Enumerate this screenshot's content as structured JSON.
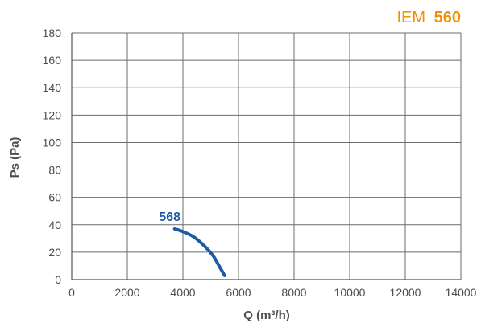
{
  "chart_data": {
    "type": "line",
    "title": {
      "prefix": "IEM",
      "model": "560"
    },
    "xlabel": "Q (m³/h)",
    "ylabel": "Ps (Pa)",
    "xlim": [
      0,
      14000
    ],
    "ylim": [
      0,
      180
    ],
    "x_ticks": [
      0,
      2000,
      4000,
      6000,
      8000,
      10000,
      12000,
      14000
    ],
    "y_ticks": [
      0,
      20,
      40,
      60,
      80,
      100,
      120,
      140,
      160,
      180
    ],
    "x_tick_labels": [
      "0",
      "2000",
      "4000",
      "6000",
      "8000",
      "10000",
      "12000",
      "14000"
    ],
    "y_tick_labels": [
      "0",
      "20",
      "40",
      "60",
      "80",
      "100",
      "120",
      "140",
      "160",
      "180"
    ],
    "grid": true,
    "series": [
      {
        "name": "568",
        "color": "#1f5aa6",
        "points": [
          {
            "x": 3700,
            "y": 37
          },
          {
            "x": 4000,
            "y": 35
          },
          {
            "x": 4400,
            "y": 31
          },
          {
            "x": 4800,
            "y": 24
          },
          {
            "x": 5100,
            "y": 17
          },
          {
            "x": 5300,
            "y": 10
          },
          {
            "x": 5500,
            "y": 3
          }
        ]
      }
    ],
    "colors": {
      "title_accent": "#f39200",
      "axis_text": "#4d4d4d",
      "grid": "#6b6b6b"
    }
  }
}
